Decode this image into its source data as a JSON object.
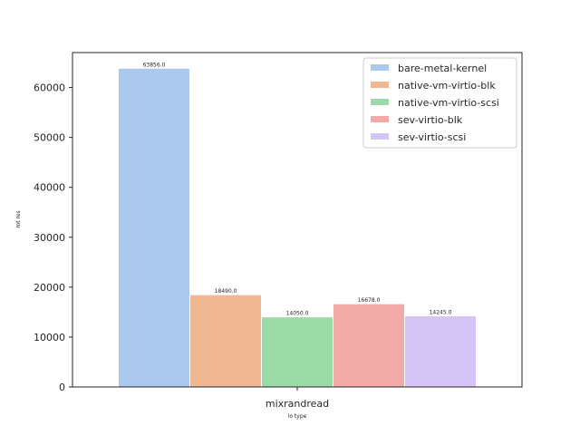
{
  "chart_data": {
    "type": "bar",
    "categories": [
      "mixrandread"
    ],
    "series": [
      {
        "name": "bare-metal-kernel",
        "values": [
          63856.0
        ],
        "color": "#abc9ed"
      },
      {
        "name": "native-vm-virtio-blk",
        "values": [
          18490.0
        ],
        "color": "#efb792"
      },
      {
        "name": "native-vm-virtio-scsi",
        "values": [
          14050.0
        ],
        "color": "#9bdba8"
      },
      {
        "name": "sev-virtio-blk",
        "values": [
          16678.0
        ],
        "color": "#f2aaa7"
      },
      {
        "name": "sev-virtio-scsi",
        "values": [
          14245.0
        ],
        "color": "#d5c4f6"
      }
    ],
    "data_labels": [
      "63856.0",
      "18490.0",
      "14050.0",
      "16678.0",
      "14245.0"
    ],
    "xlabel": "io type",
    "ylabel": "mt res",
    "ylim": [
      0,
      67000
    ],
    "yticks": [
      0,
      10000,
      20000,
      30000,
      40000,
      50000,
      60000
    ],
    "grid": false,
    "legend_position": "top-right"
  }
}
